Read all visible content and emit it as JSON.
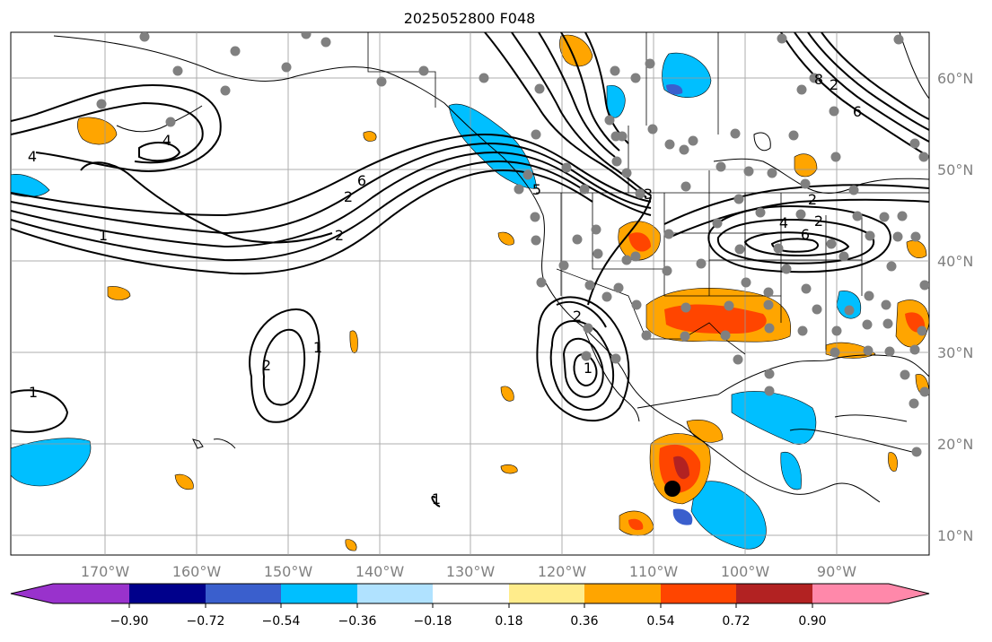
{
  "map": {
    "title": "2025052800 F048",
    "lon_labels": [
      "170°W",
      "160°W",
      "150°W",
      "140°W",
      "130°W",
      "120°W",
      "110°W",
      "100°W",
      "90°W"
    ],
    "lat_labels": [
      "60°N",
      "50°N",
      "40°N",
      "30°N",
      "20°N",
      "10°N"
    ],
    "contour_labels": [
      "4",
      "4",
      "1",
      "2",
      "6",
      "2",
      "1",
      "2",
      "1",
      "2",
      "1",
      "3",
      "5",
      "2",
      "2",
      "4",
      "6",
      "6",
      "8",
      "2",
      "1"
    ],
    "colorbar": {
      "ticks": [
        "−0.90",
        "−0.72",
        "−0.54",
        "−0.36",
        "−0.18",
        "0.18",
        "0.36",
        "0.54",
        "0.72",
        "0.90"
      ],
      "colors": [
        "#9932cc",
        "#00008b",
        "#3a5fcd",
        "#00bfff",
        "#b0e2ff",
        "#ffffff",
        "#ffec8b",
        "#ffa500",
        "#ff4500",
        "#b22222",
        "#ff88aa"
      ]
    },
    "colors": {
      "contour": "#000000",
      "station_marker": "#808080",
      "highlight_marker": "#000000",
      "grid": "#999999"
    }
  }
}
